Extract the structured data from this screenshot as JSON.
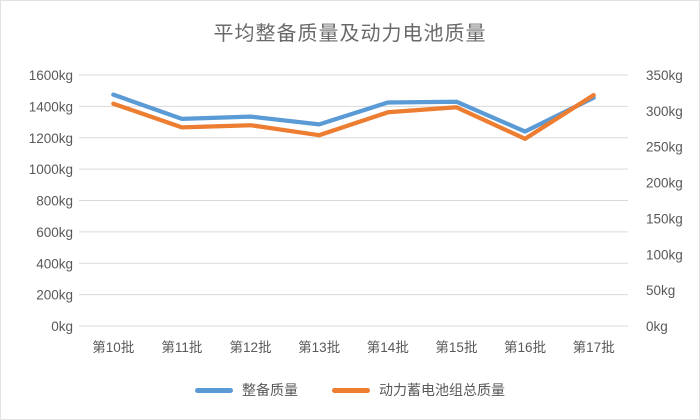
{
  "chart_data": {
    "type": "line",
    "title": "平均整备质量及动力电池质量",
    "categories": [
      "第10批",
      "第11批",
      "第12批",
      "第13批",
      "第14批",
      "第15批",
      "第16批",
      "第17批"
    ],
    "series": [
      {
        "name": "整备质量",
        "axis": "left",
        "color": "#5B9BD5",
        "values": [
          1475,
          1320,
          1335,
          1285,
          1425,
          1430,
          1240,
          1455
        ]
      },
      {
        "name": "动力蓄电池组总质量",
        "axis": "right",
        "color": "#ED7D31",
        "values": [
          310,
          277,
          280,
          266,
          298,
          305,
          261,
          322
        ]
      }
    ],
    "axes": {
      "left": {
        "min": 0,
        "max": 1600,
        "step": 200,
        "unit": "kg",
        "tick_labels": [
          "0kg",
          "200kg",
          "400kg",
          "600kg",
          "800kg",
          "1000kg",
          "1200kg",
          "1400kg",
          "1600kg"
        ]
      },
      "right": {
        "min": 0,
        "max": 350,
        "step": 50,
        "unit": "kg",
        "tick_labels": [
          "0kg",
          "50kg",
          "100kg",
          "150kg",
          "200kg",
          "250kg",
          "300kg",
          "350kg"
        ]
      }
    },
    "grid": true,
    "legend_position": "bottom",
    "colors": {
      "gridline": "#D9D9D9",
      "axis_text": "#595959",
      "title_text": "#696969",
      "background": "#FFFFFF"
    }
  }
}
